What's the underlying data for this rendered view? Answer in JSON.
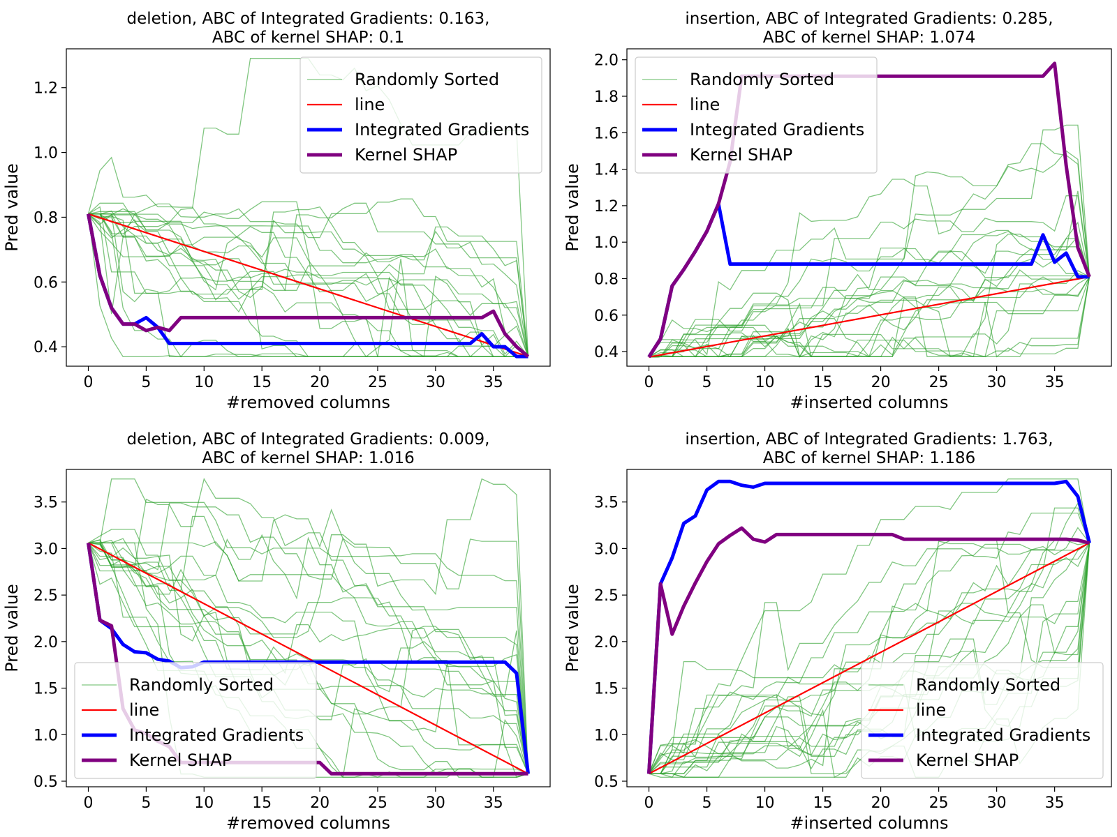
{
  "chart_data": [
    {
      "type": "line",
      "title_line1": "deletion, ABC of Integrated Gradients: 0.163,",
      "title_line2": "ABC of kernel SHAP: 0.1",
      "xlabel": "#removed columns",
      "ylabel": "Pred value",
      "xlim": [
        -1.9,
        39.9
      ],
      "ylim": [
        0.34,
        1.32
      ],
      "xticks": [
        0,
        5,
        10,
        15,
        20,
        25,
        30,
        35
      ],
      "yticks": [
        0.4,
        0.6,
        0.8,
        1.0,
        1.2
      ],
      "ytick_labels": [
        "0.4",
        "0.6",
        "0.8",
        "1.0",
        "1.2"
      ],
      "legend_position": "upper-right",
      "series": [
        {
          "name": "Randomly Sorted",
          "color": "#2ca02c",
          "style": "random",
          "x": [
            0,
            38
          ],
          "values": [
            0.81,
            0.37
          ]
        },
        {
          "name": "line",
          "color": "#ff0000",
          "style": "line",
          "x": [
            0,
            38
          ],
          "values": [
            0.81,
            0.37
          ]
        },
        {
          "name": "Integrated Gradients",
          "color": "#0000ff",
          "style": "thick",
          "x": [
            0,
            1,
            2,
            3,
            4,
            5,
            6,
            7,
            8,
            9,
            10,
            15,
            20,
            25,
            30,
            33,
            34,
            35,
            36,
            37,
            38
          ],
          "values": [
            0.81,
            0.62,
            0.52,
            0.47,
            0.47,
            0.49,
            0.46,
            0.41,
            0.41,
            0.41,
            0.41,
            0.41,
            0.41,
            0.41,
            0.41,
            0.41,
            0.44,
            0.4,
            0.4,
            0.37,
            0.37
          ]
        },
        {
          "name": "Kernel SHAP",
          "color": "#800080",
          "style": "thick",
          "x": [
            0,
            1,
            2,
            3,
            4,
            5,
            6,
            7,
            8,
            9,
            10,
            15,
            20,
            25,
            30,
            33,
            34,
            35,
            36,
            37,
            38
          ],
          "values": [
            0.81,
            0.62,
            0.52,
            0.47,
            0.47,
            0.45,
            0.46,
            0.45,
            0.49,
            0.49,
            0.49,
            0.49,
            0.49,
            0.49,
            0.49,
            0.49,
            0.49,
            0.51,
            0.44,
            0.4,
            0.37
          ]
        }
      ]
    },
    {
      "type": "line",
      "title_line1": "insertion, ABC of Integrated Gradients: 0.285,",
      "title_line2": "ABC of kernel SHAP: 1.074",
      "xlabel": "#inserted columns",
      "ylabel": "Pred value",
      "xlim": [
        -1.9,
        39.9
      ],
      "ylim": [
        0.32,
        2.06
      ],
      "xticks": [
        0,
        5,
        10,
        15,
        20,
        25,
        30,
        35
      ],
      "yticks": [
        0.4,
        0.6,
        0.8,
        1.0,
        1.2,
        1.4,
        1.6,
        1.8,
        2.0
      ],
      "ytick_labels": [
        "0.4",
        "0.6",
        "0.8",
        "1.0",
        "1.2",
        "1.4",
        "1.6",
        "1.8",
        "2.0"
      ],
      "legend_position": "upper-left",
      "series": [
        {
          "name": "Randomly Sorted",
          "color": "#2ca02c",
          "style": "random",
          "x": [
            0,
            38
          ],
          "values": [
            0.37,
            0.81
          ]
        },
        {
          "name": "line",
          "color": "#ff0000",
          "style": "line",
          "x": [
            0,
            38
          ],
          "values": [
            0.37,
            0.81
          ]
        },
        {
          "name": "Integrated Gradients",
          "color": "#0000ff",
          "style": "thick",
          "x": [
            0,
            1,
            2,
            3,
            4,
            5,
            6,
            7,
            8,
            10,
            15,
            20,
            25,
            30,
            33,
            34,
            35,
            36,
            37,
            38
          ],
          "values": [
            0.37,
            0.47,
            0.76,
            0.85,
            0.95,
            1.06,
            1.21,
            0.88,
            0.88,
            0.88,
            0.88,
            0.88,
            0.88,
            0.88,
            0.88,
            1.04,
            0.89,
            0.94,
            0.81,
            0.81
          ]
        },
        {
          "name": "Kernel SHAP",
          "color": "#800080",
          "style": "thick",
          "x": [
            0,
            1,
            2,
            3,
            4,
            5,
            6,
            7,
            8,
            9,
            10,
            15,
            20,
            25,
            30,
            34,
            35,
            36,
            37,
            38
          ],
          "values": [
            0.37,
            0.47,
            0.76,
            0.85,
            0.95,
            1.06,
            1.21,
            1.44,
            1.91,
            1.91,
            1.91,
            1.91,
            1.91,
            1.91,
            1.91,
            1.91,
            1.98,
            1.42,
            0.97,
            0.81
          ]
        }
      ]
    },
    {
      "type": "line",
      "title_line1": "deletion, ABC of Integrated Gradients: 0.009,",
      "title_line2": "ABC of kernel SHAP: 1.016",
      "xlabel": "#removed columns",
      "ylabel": "Pred value",
      "xlim": [
        -1.9,
        39.9
      ],
      "ylim": [
        0.44,
        3.85
      ],
      "xticks": [
        0,
        5,
        10,
        15,
        20,
        25,
        30,
        35
      ],
      "yticks": [
        0.5,
        1.0,
        1.5,
        2.0,
        2.5,
        3.0,
        3.5
      ],
      "ytick_labels": [
        "0.5",
        "1.0",
        "1.5",
        "2.0",
        "2.5",
        "3.0",
        "3.5"
      ],
      "legend_position": "lower-left",
      "series": [
        {
          "name": "Randomly Sorted",
          "color": "#2ca02c",
          "style": "random",
          "x": [
            0,
            38
          ],
          "values": [
            3.06,
            0.58
          ]
        },
        {
          "name": "line",
          "color": "#ff0000",
          "style": "line",
          "x": [
            0,
            38
          ],
          "values": [
            3.06,
            0.58
          ]
        },
        {
          "name": "Integrated Gradients",
          "color": "#0000ff",
          "style": "thick",
          "x": [
            0,
            1,
            2,
            3,
            4,
            5,
            6,
            7,
            8,
            9,
            10,
            15,
            20,
            25,
            30,
            35,
            36,
            37,
            38
          ],
          "values": [
            3.06,
            2.23,
            2.14,
            1.97,
            1.89,
            1.88,
            1.81,
            1.79,
            1.72,
            1.73,
            1.78,
            1.78,
            1.78,
            1.78,
            1.78,
            1.78,
            1.78,
            1.66,
            0.58
          ]
        },
        {
          "name": "Kernel SHAP",
          "color": "#800080",
          "style": "thick",
          "x": [
            0,
            1,
            2,
            3,
            4,
            5,
            6,
            7,
            8,
            9,
            10,
            15,
            20,
            21,
            25,
            30,
            35,
            36,
            37,
            38
          ],
          "values": [
            3.06,
            2.23,
            2.17,
            1.28,
            1.05,
            1.01,
            0.93,
            0.87,
            0.7,
            0.7,
            0.7,
            0.7,
            0.7,
            0.58,
            0.58,
            0.58,
            0.58,
            0.58,
            0.58,
            0.58
          ]
        }
      ]
    },
    {
      "type": "line",
      "title_line1": "insertion, ABC of Integrated Gradients: 1.763,",
      "title_line2": "ABC of kernel SHAP: 1.186",
      "xlabel": "#inserted columns",
      "ylabel": "Pred value",
      "xlim": [
        -1.9,
        39.9
      ],
      "ylim": [
        0.44,
        3.85
      ],
      "xticks": [
        0,
        5,
        10,
        15,
        20,
        25,
        30,
        35
      ],
      "yticks": [
        0.5,
        1.0,
        1.5,
        2.0,
        2.5,
        3.0,
        3.5
      ],
      "ytick_labels": [
        "0.5",
        "1.0",
        "1.5",
        "2.0",
        "2.5",
        "3.0",
        "3.5"
      ],
      "legend_position": "lower-right",
      "series": [
        {
          "name": "Randomly Sorted",
          "color": "#2ca02c",
          "style": "random",
          "x": [
            0,
            38
          ],
          "values": [
            0.58,
            3.06
          ]
        },
        {
          "name": "line",
          "color": "#ff0000",
          "style": "line",
          "x": [
            0,
            38
          ],
          "values": [
            0.58,
            3.06
          ]
        },
        {
          "name": "Integrated Gradients",
          "color": "#0000ff",
          "style": "thick",
          "x": [
            0,
            1,
            2,
            3,
            4,
            5,
            6,
            7,
            8,
            9,
            10,
            15,
            20,
            25,
            30,
            35,
            36,
            37,
            38
          ],
          "values": [
            0.58,
            2.62,
            2.9,
            3.27,
            3.35,
            3.63,
            3.72,
            3.72,
            3.68,
            3.66,
            3.7,
            3.7,
            3.7,
            3.7,
            3.7,
            3.7,
            3.72,
            3.56,
            3.06
          ]
        },
        {
          "name": "Kernel SHAP",
          "color": "#800080",
          "style": "thick",
          "x": [
            0,
            1,
            2,
            3,
            4,
            5,
            6,
            7,
            8,
            9,
            10,
            11,
            15,
            20,
            21,
            22,
            25,
            30,
            35,
            36,
            37,
            38
          ],
          "values": [
            0.58,
            2.62,
            2.08,
            2.38,
            2.63,
            2.86,
            3.05,
            3.14,
            3.22,
            3.1,
            3.07,
            3.15,
            3.15,
            3.15,
            3.15,
            3.1,
            3.1,
            3.1,
            3.1,
            3.1,
            3.09,
            3.06
          ]
        }
      ]
    }
  ]
}
